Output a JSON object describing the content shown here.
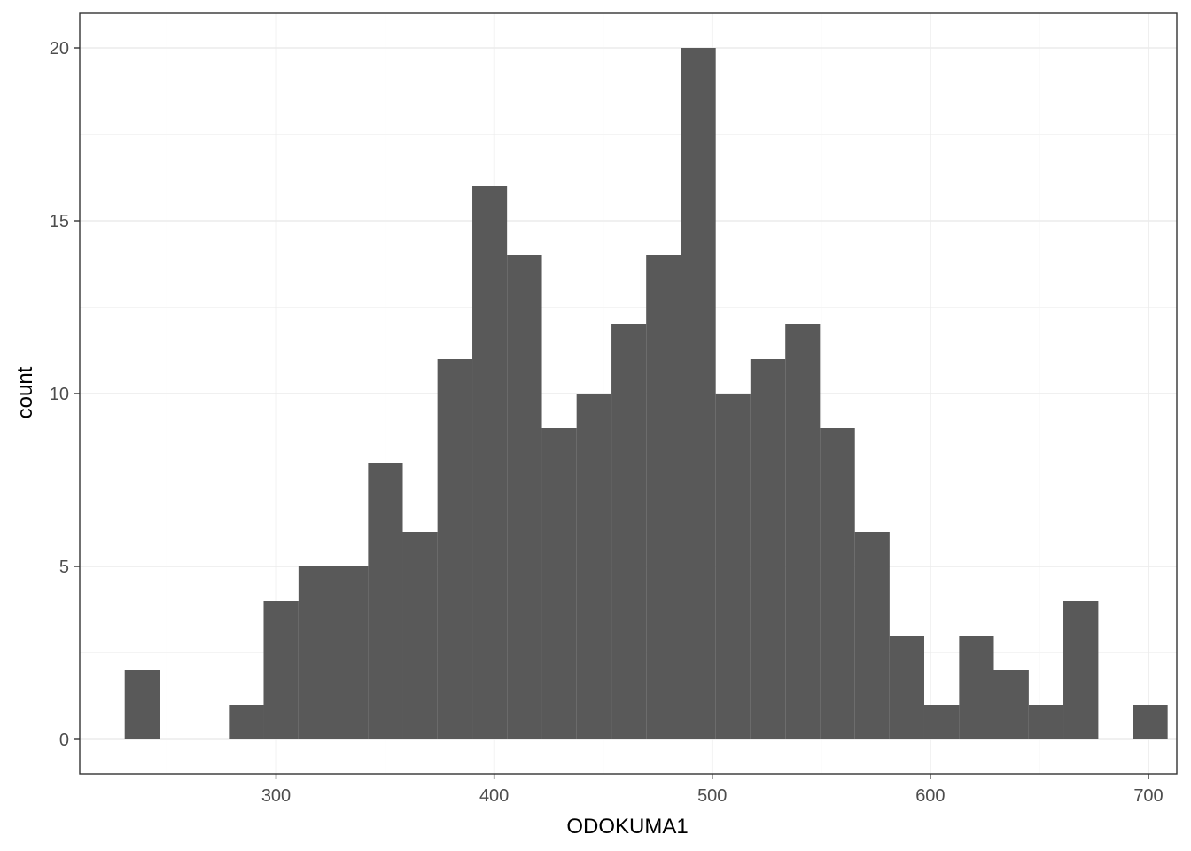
{
  "chart_data": {
    "type": "bar",
    "subtype": "histogram",
    "xlabel": "ODOKUMA1",
    "ylabel": "count",
    "xlim": [
      210,
      713
    ],
    "ylim": [
      -1,
      21
    ],
    "x_ticks": [
      300,
      400,
      500,
      600,
      700
    ],
    "y_ticks": [
      0,
      5,
      10,
      15,
      20
    ],
    "grid": true,
    "bin_width": 15.94,
    "bins": [
      {
        "start": 230.6,
        "end": 246.6,
        "count": 2
      },
      {
        "start": 278.4,
        "end": 294.3,
        "count": 1
      },
      {
        "start": 294.3,
        "end": 310.3,
        "count": 4
      },
      {
        "start": 310.3,
        "end": 326.2,
        "count": 5
      },
      {
        "start": 326.2,
        "end": 342.2,
        "count": 5
      },
      {
        "start": 342.2,
        "end": 358.1,
        "count": 8
      },
      {
        "start": 358.1,
        "end": 374.0,
        "count": 6
      },
      {
        "start": 374.0,
        "end": 390.0,
        "count": 11
      },
      {
        "start": 390.0,
        "end": 405.9,
        "count": 16
      },
      {
        "start": 405.9,
        "end": 421.9,
        "count": 14
      },
      {
        "start": 421.9,
        "end": 437.8,
        "count": 9
      },
      {
        "start": 437.8,
        "end": 453.8,
        "count": 10
      },
      {
        "start": 453.8,
        "end": 469.7,
        "count": 12
      },
      {
        "start": 469.7,
        "end": 485.6,
        "count": 14
      },
      {
        "start": 485.6,
        "end": 501.6,
        "count": 20
      },
      {
        "start": 501.6,
        "end": 517.5,
        "count": 10
      },
      {
        "start": 517.5,
        "end": 533.5,
        "count": 11
      },
      {
        "start": 533.5,
        "end": 549.4,
        "count": 12
      },
      {
        "start": 549.4,
        "end": 565.4,
        "count": 9
      },
      {
        "start": 565.4,
        "end": 581.3,
        "count": 6
      },
      {
        "start": 581.3,
        "end": 597.2,
        "count": 3
      },
      {
        "start": 597.2,
        "end": 613.2,
        "count": 1
      },
      {
        "start": 613.2,
        "end": 629.1,
        "count": 3
      },
      {
        "start": 629.1,
        "end": 645.1,
        "count": 2
      },
      {
        "start": 645.1,
        "end": 661.0,
        "count": 1
      },
      {
        "start": 661.0,
        "end": 677.0,
        "count": 4
      },
      {
        "start": 692.9,
        "end": 708.8,
        "count": 1
      }
    ],
    "colors": {
      "bar": "#595959",
      "grid_major": "#ebebeb",
      "grid_minor": "#f4f4f4",
      "panel_border": "#333333",
      "tick_text": "#4d4d4d"
    }
  }
}
